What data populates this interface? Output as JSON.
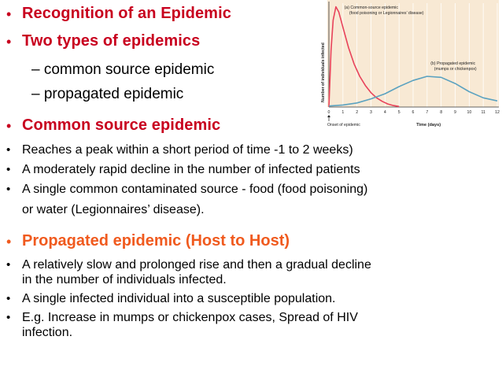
{
  "sections": [
    {
      "id": "recognition",
      "heading": "Recognition of an Epidemic"
    },
    {
      "id": "types",
      "heading": "Two types of epidemics",
      "sub": [
        "– common source epidemic",
        "– propagated epidemic"
      ]
    },
    {
      "id": "common",
      "heading": "Common source epidemic",
      "bullets": [
        [
          "Reaches a peak within a short period of time -1 to 2 weeks)"
        ],
        [
          "A moderately rapid decline in the number of infected patients"
        ],
        [
          "A single common contaminated source - food (food poisoning)",
          "or water (Legionnaires’ disease)."
        ]
      ]
    },
    {
      "id": "propagated",
      "heading": "Propagated epidemic (Host to Host)",
      "bullets": [
        [
          "A relatively slow and prolonged rise and then a gradual decline",
          "in the number of individuals infected."
        ],
        [
          "A single infected individual into a susceptible population."
        ],
        [
          "E.g. Increase in mumps or chickenpox cases, Spread of HIV",
          "infection."
        ]
      ]
    }
  ],
  "chart_data": {
    "type": "line",
    "xlabel": "Time (days)",
    "ylabel": "Number of individuals infected",
    "x_start_label": "Onset of epidemic",
    "x_ticks": [
      "0",
      "1",
      "2",
      "3",
      "4",
      "5",
      "6",
      "7",
      "8",
      "9",
      "10",
      "11",
      "12"
    ],
    "xlim": [
      0,
      12
    ],
    "ylim": [
      0,
      1
    ],
    "background": "#f8e9d4",
    "series": [
      {
        "name": "(a) Common-source epidemic (food poisoning or Legionnaires’ disease)",
        "color": "#e8425a",
        "x": [
          0,
          0.15,
          0.3,
          0.5,
          0.7,
          1.0,
          1.4,
          1.8,
          2.2,
          2.6,
          3.0,
          3.4,
          3.8,
          4.2,
          4.6,
          5.0
        ],
        "y": [
          0,
          0.55,
          0.85,
          0.98,
          0.93,
          0.78,
          0.58,
          0.42,
          0.3,
          0.21,
          0.14,
          0.09,
          0.055,
          0.03,
          0.015,
          0.005
        ]
      },
      {
        "name": "(b) Propagated epidemic (mumps or chickenpox)",
        "color": "#5ba2c0",
        "x": [
          0,
          1,
          2,
          3,
          4,
          5,
          6,
          7,
          8,
          9,
          10,
          11,
          12
        ],
        "y": [
          0.01,
          0.02,
          0.04,
          0.08,
          0.13,
          0.2,
          0.26,
          0.3,
          0.29,
          0.23,
          0.15,
          0.09,
          0.06
        ]
      }
    ],
    "series_labels": [
      [
        "(a) Common-source epidemic",
        "(food poisoning or Legionnaires’ disease)"
      ],
      [
        "(b) Propagated epidemic",
        "(mumps or chickenpox)"
      ]
    ]
  }
}
